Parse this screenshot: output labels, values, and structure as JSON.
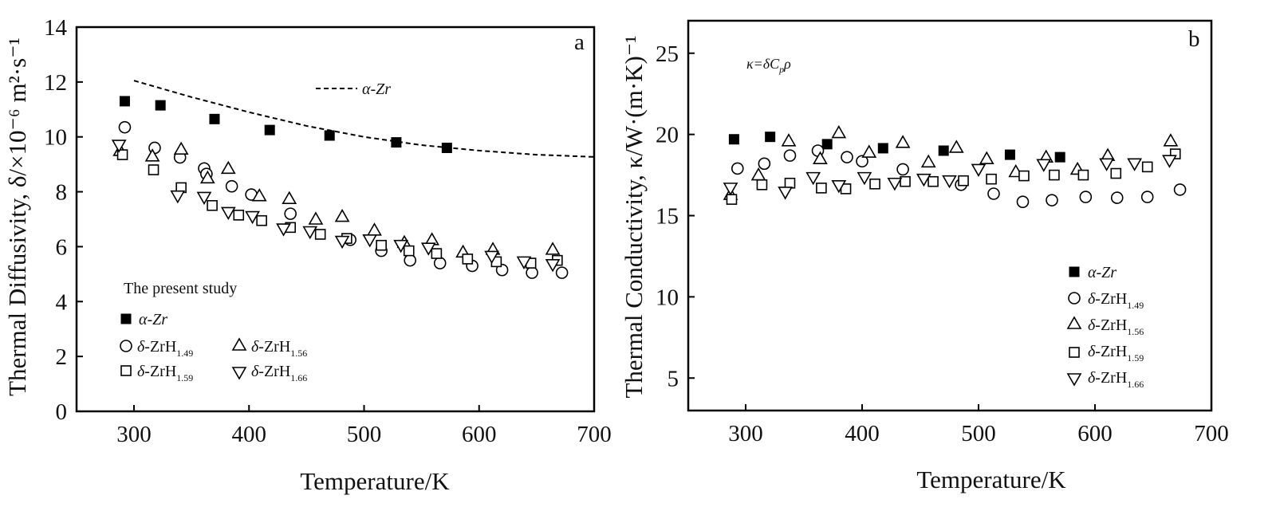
{
  "chart_data": [
    {
      "type": "scatter",
      "panel": "a",
      "xlabel": "Temperature/K",
      "ylabel": "Thermal Diffusivity, δ/×10⁻⁶ m²·s⁻¹",
      "xlim": [
        250,
        700
      ],
      "ylim": [
        0,
        14
      ],
      "xticks": [
        "300",
        "400",
        "500",
        "600",
        "700"
      ],
      "yticks": [
        "0",
        "2",
        "4",
        "6",
        "8",
        "10",
        "12",
        "14"
      ],
      "legend_title": "The present study",
      "line_series": {
        "name": "α-Zr",
        "style": "dashed",
        "x": [
          300,
          350,
          400,
          450,
          500,
          550,
          600,
          650,
          700
        ],
        "y": [
          12.05,
          11.45,
          10.9,
          10.4,
          10.0,
          9.7,
          9.5,
          9.35,
          9.27
        ]
      },
      "series": [
        {
          "name": "α-Zr",
          "marker": "square-filled",
          "x": [
            292,
            323,
            370,
            418,
            470,
            528,
            572
          ],
          "y": [
            11.3,
            11.15,
            10.65,
            10.25,
            10.05,
            9.8,
            9.6
          ]
        },
        {
          "name": "δ-ZrH1.49",
          "marker": "circle",
          "x": [
            292,
            318,
            340,
            361,
            363,
            385,
            402,
            436,
            488,
            515,
            540,
            566,
            594,
            620,
            646,
            672
          ],
          "y": [
            10.35,
            9.6,
            9.25,
            8.85,
            8.65,
            8.2,
            7.9,
            7.2,
            6.25,
            5.85,
            5.5,
            5.4,
            5.3,
            5.15,
            5.05,
            5.05
          ]
        },
        {
          "name": "δ-ZrH1.56",
          "marker": "triangle-up",
          "x": [
            288,
            316,
            341,
            364,
            382,
            409,
            435,
            458,
            481,
            509,
            535,
            559,
            586,
            612,
            664
          ],
          "y": [
            9.5,
            9.3,
            9.55,
            8.5,
            8.85,
            7.85,
            7.75,
            7.0,
            7.1,
            6.6,
            6.15,
            6.25,
            5.8,
            5.9,
            5.9
          ]
        },
        {
          "name": "δ-ZrH1.59",
          "marker": "square",
          "x": [
            290,
            317,
            341,
            368,
            391,
            411,
            436,
            462,
            485,
            515,
            539,
            563,
            590,
            615,
            645,
            668
          ],
          "y": [
            9.35,
            8.8,
            8.15,
            7.5,
            7.15,
            6.95,
            6.7,
            6.45,
            6.3,
            6.05,
            5.85,
            5.75,
            5.55,
            5.45,
            5.4,
            5.5
          ]
        },
        {
          "name": "δ-ZrH1.66",
          "marker": "triangle-down",
          "x": [
            287,
            338,
            361,
            382,
            403,
            430,
            453,
            481,
            505,
            532,
            556,
            611,
            639,
            664
          ],
          "y": [
            9.7,
            7.85,
            7.8,
            7.25,
            7.1,
            6.65,
            6.55,
            6.2,
            6.25,
            6.05,
            5.95,
            5.65,
            5.45,
            5.35
          ]
        }
      ],
      "annotations": [
        "α-Zr"
      ]
    },
    {
      "type": "scatter",
      "panel": "b",
      "xlabel": "Temperature/K",
      "ylabel": "Thermal Conductivity, κ/W·(m·K)⁻¹",
      "xlim": [
        250,
        700
      ],
      "ylim": [
        3,
        27
      ],
      "xticks": [
        "300",
        "400",
        "500",
        "600",
        "700"
      ],
      "yticks": [
        "5",
        "10",
        "15",
        "20",
        "25"
      ],
      "formula": "κ=δCpρ",
      "series": [
        {
          "name": "α-Zr",
          "marker": "square-filled",
          "x": [
            290,
            321,
            370,
            418,
            470,
            527,
            570
          ],
          "y": [
            19.7,
            19.85,
            19.4,
            19.15,
            19.0,
            18.75,
            18.6
          ]
        },
        {
          "name": "δ-ZrH1.49",
          "marker": "circle",
          "x": [
            293,
            316,
            338,
            362,
            387,
            400,
            435,
            485,
            513,
            538,
            563,
            592,
            619,
            645,
            673
          ],
          "y": [
            17.9,
            18.2,
            18.7,
            19.0,
            18.6,
            18.35,
            17.85,
            16.9,
            16.35,
            15.85,
            15.95,
            16.15,
            16.1,
            16.15,
            16.6
          ]
        },
        {
          "name": "δ-ZrH1.56",
          "marker": "triangle-up",
          "x": [
            287,
            311,
            337,
            364,
            380,
            406,
            435,
            457,
            481,
            507,
            532,
            558,
            585,
            611,
            665
          ],
          "y": [
            16.3,
            17.5,
            19.6,
            18.5,
            20.1,
            18.9,
            19.5,
            18.3,
            19.2,
            18.5,
            17.7,
            18.6,
            17.85,
            18.7,
            19.6
          ]
        },
        {
          "name": "δ-ZrH1.59",
          "marker": "square",
          "x": [
            288,
            314,
            338,
            365,
            386,
            411,
            437,
            461,
            487,
            511,
            539,
            565,
            590,
            618,
            645,
            669
          ],
          "y": [
            16.0,
            16.9,
            17.0,
            16.7,
            16.65,
            16.95,
            17.1,
            17.1,
            17.15,
            17.25,
            17.45,
            17.5,
            17.5,
            17.6,
            18.0,
            18.8
          ]
        },
        {
          "name": "δ-ZrH1.66",
          "marker": "triangle-down",
          "x": [
            287,
            334,
            358,
            380,
            402,
            428,
            453,
            475,
            500,
            556,
            610,
            634,
            664
          ],
          "y": [
            16.7,
            16.45,
            17.35,
            16.85,
            17.35,
            17.0,
            17.25,
            17.15,
            17.85,
            18.15,
            18.2,
            18.2,
            18.4
          ]
        }
      ]
    }
  ]
}
